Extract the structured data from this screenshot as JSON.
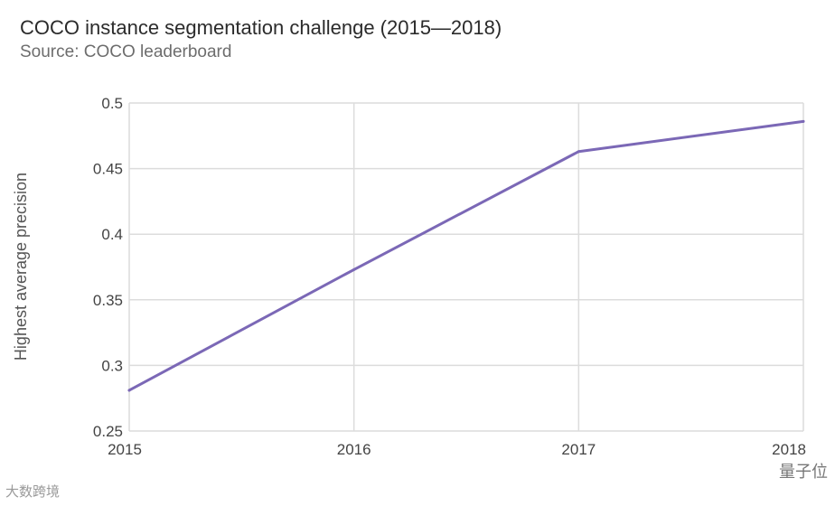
{
  "title": "COCO instance segmentation challenge (2015—2018)",
  "subtitle": "Source: COCO leaderboard",
  "watermarks": {
    "left": "大数跨境",
    "right": "量子位"
  },
  "chart_data": {
    "type": "line",
    "title": "COCO instance segmentation challenge (2015—2018)",
    "subtitle": "Source: COCO leaderboard",
    "xlabel": "",
    "ylabel": "Highest average precision",
    "x": [
      "2015",
      "2016",
      "2017",
      "2018"
    ],
    "series": [
      {
        "values": [
          0.281,
          0.373,
          0.463,
          0.486
        ],
        "color": "#7b68b6"
      }
    ],
    "yticks": [
      "0.25",
      "0.3",
      "0.35",
      "0.4",
      "0.45",
      "0.5"
    ],
    "ylim": [
      0.25,
      0.5
    ],
    "grid": true,
    "gridColor": "#dcdcdc"
  }
}
